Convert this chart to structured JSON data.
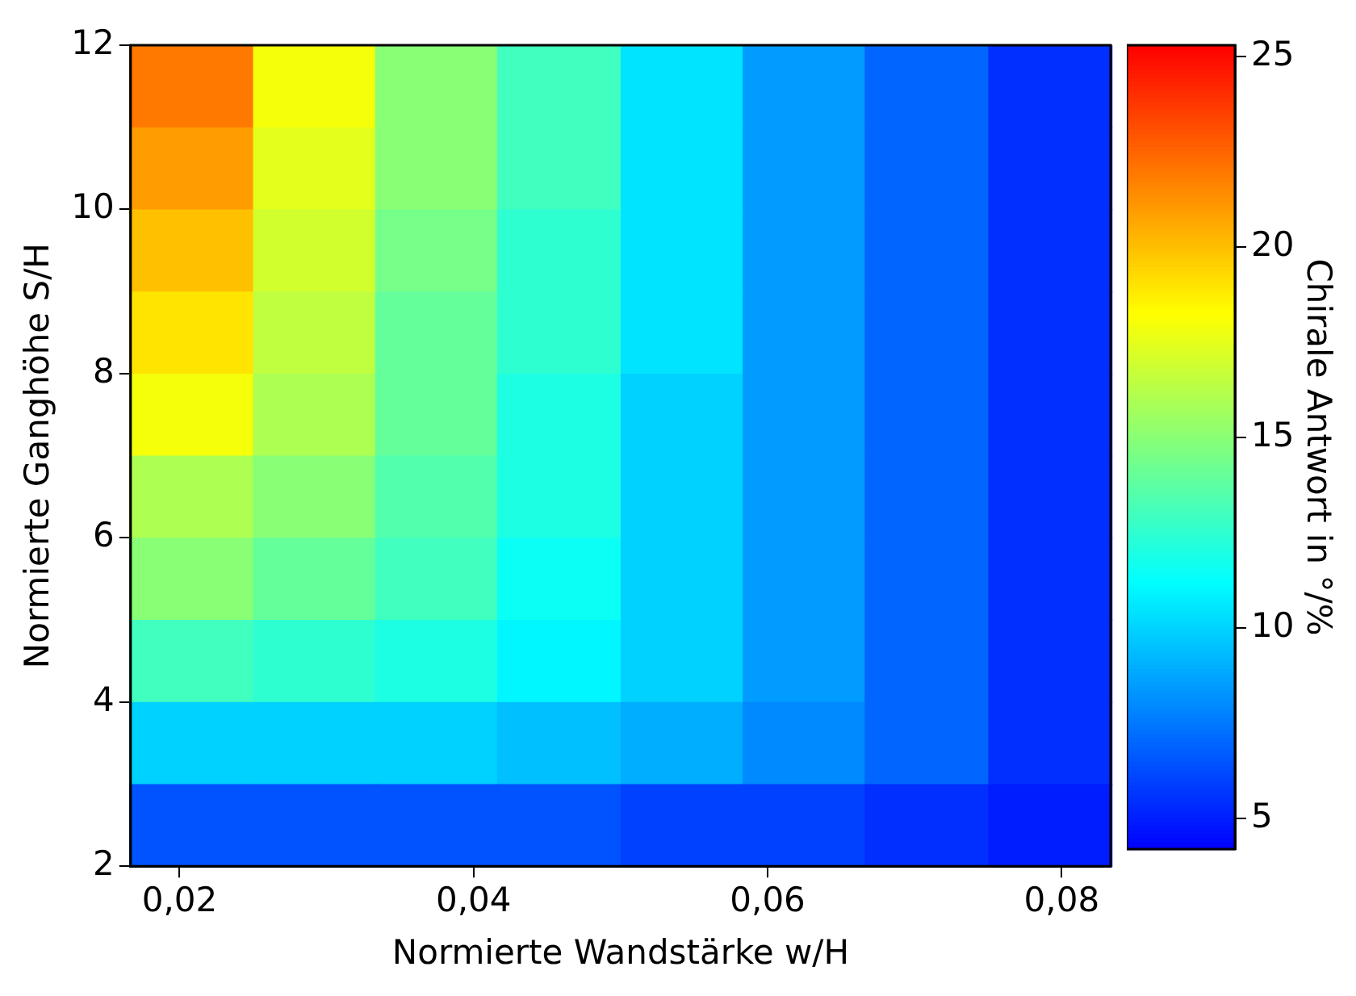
{
  "chart_data": {
    "type": "heatmap",
    "xlabel": "Normierte Wandstärke w/H",
    "ylabel": "Normierte Ganghöhe S/H",
    "clabel": "Chirale Antwort in °/%",
    "x": [
      0.0208,
      0.0292,
      0.0375,
      0.0458,
      0.0542,
      0.0625,
      0.0708,
      0.0792
    ],
    "y": [
      11.5,
      10.5,
      9.5,
      8.5,
      7.5,
      6.5,
      5.5,
      4.5,
      3.5,
      2.5
    ],
    "cells": [
      [
        22,
        18,
        15,
        13,
        10.5,
        8.5,
        7,
        5.5
      ],
      [
        21,
        17.5,
        15,
        13,
        10.5,
        8.5,
        7,
        5.5
      ],
      [
        20,
        17,
        14.5,
        12.5,
        10.5,
        8.5,
        7,
        5.5
      ],
      [
        19,
        16.5,
        14,
        12.5,
        10.5,
        8.5,
        7,
        5.5
      ],
      [
        18,
        16,
        14,
        12,
        10,
        8.5,
        7,
        5.5
      ],
      [
        16,
        15,
        13.5,
        12,
        10,
        8.5,
        7,
        5.5
      ],
      [
        15,
        14,
        13,
        11.5,
        10,
        8.5,
        7,
        5.5
      ],
      [
        13,
        12.5,
        12,
        11,
        10,
        8.5,
        7,
        5.5
      ],
      [
        10,
        10,
        10,
        9.5,
        9,
        8,
        7,
        5.5
      ],
      [
        6.5,
        6.5,
        6.5,
        6.5,
        6,
        6,
        5.5,
        5
      ]
    ],
    "xlim": [
      0.01667,
      0.08333
    ],
    "ylim": [
      2,
      12
    ],
    "xticks": [
      {
        "value": 0.02,
        "label": "0,02"
      },
      {
        "value": 0.04,
        "label": "0,04"
      },
      {
        "value": 0.06,
        "label": "0,06"
      },
      {
        "value": 0.08,
        "label": "0,08"
      }
    ],
    "yticks": [
      2,
      4,
      6,
      8,
      10,
      12
    ],
    "clim": [
      4.2,
      25.3
    ],
    "cticks": [
      5,
      10,
      15,
      20,
      25
    ]
  }
}
